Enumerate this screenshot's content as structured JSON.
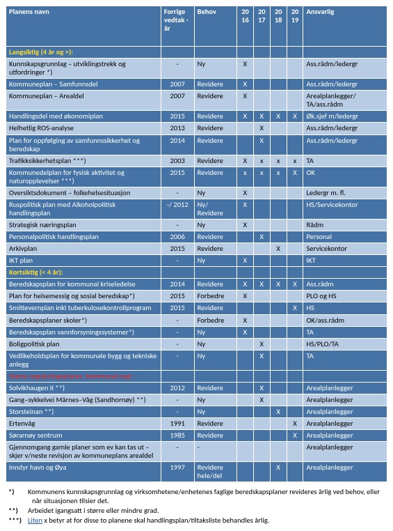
{
  "headers": {
    "name": "Planens navn",
    "prev": "Forrige vedtak - år",
    "need": "Behov",
    "y16": "20 16",
    "y17": "20 17",
    "y18": "20 18",
    "y19": "20 19",
    "resp": "Ansvarlig"
  },
  "sections": {
    "long": "Langsiktig  (4 år og >):",
    "short": "Kortsiktig (< 4 år):",
    "reg": "Større reguleringsplaner, kommunal regi :"
  },
  "rows": [
    {
      "cls": "row-light",
      "name": "Kunnskapsgrunnlag – utviklingstrekk og utfordringer *)",
      "prev": "-",
      "need": "Ny",
      "y16": "X",
      "y17": "",
      "y18": "",
      "y19": "",
      "resp": "Ass.rådm/ledergr"
    },
    {
      "cls": "row-dark",
      "name": "Kommuneplan – Samfunnsdel",
      "prev": "2007",
      "need": "Revidere",
      "y16": "X",
      "y17": "",
      "y18": "",
      "y19": "",
      "resp": "Ass.rådm/ledergr"
    },
    {
      "cls": "row-light",
      "name": "Kommuneplan – Arealdel",
      "prev": "2007",
      "need": "Revidere",
      "y16": "X",
      "y17": "",
      "y18": "",
      "y19": "",
      "resp": "Arealplanlegger/ TA/ass.rådm"
    },
    {
      "cls": "row-dark",
      "name": "Handlingsdel med økonomiplan",
      "prev": "2015",
      "need": "Revidere",
      "y16": "X",
      "y17": "X",
      "y18": "X",
      "y19": "X",
      "resp": "Øk.sjef m/ledergr"
    },
    {
      "cls": "row-light",
      "name": "Helhetlig ROS-analyse",
      "prev": "2013",
      "need": "Revidere",
      "y16": "",
      "y17": "X",
      "y18": "",
      "y19": "",
      "resp": "Ass.rådm/ledergr"
    },
    {
      "cls": "row-dark",
      "name": "Plan for oppfølging av samfunnssikkerhet og beredskap",
      "prev": "2014",
      "need": "Revidere",
      "y16": "",
      "y17": "X",
      "y18": "",
      "y19": "",
      "resp": "Ass.rådm/ledergr"
    },
    {
      "cls": "row-light",
      "name": "Trafikksikkerhetsplan ***)",
      "prev": "2003",
      "need": "Revidere",
      "y16": "X",
      "y17": "x",
      "y18": "x",
      "y19": "x",
      "resp": "TA"
    },
    {
      "cls": "row-dark",
      "name": "Kommunedelplan for fysisk aktivitet og naturopplevelser ***)",
      "prev": "2015",
      "need": "Revidere",
      "y16": "x",
      "y17": "x",
      "y18": "x",
      "y19": "X",
      "resp": "OK"
    },
    {
      "cls": "row-light",
      "name": "Oversiktsdokument – folkehelsesituasjon",
      "prev": "-",
      "need": "Ny",
      "y16": "X",
      "y17": "",
      "y18": "",
      "y19": "",
      "resp": "Ledergr m. fl."
    },
    {
      "cls": "row-dark",
      "name": "Ruspolitisk plan med Alkoholpolitisk handlingsplan",
      "prev": "-/ 2012",
      "need": "Ny/ Revidere",
      "y16": "X",
      "y17": "",
      "y18": "",
      "y19": "",
      "resp": "HS/Servicekontor"
    },
    {
      "cls": "row-light",
      "name": "Strategisk næringsplan",
      "prev": "-",
      "need": "Ny",
      "y16": "X",
      "y17": "",
      "y18": "",
      "y19": "",
      "resp": "Rådm"
    },
    {
      "cls": "row-dark",
      "name": "Personalpolitisk handlingsplan",
      "prev": "2006",
      "need": "Revidere",
      "y16": "",
      "y17": "X",
      "y18": "",
      "y19": "",
      "resp": "Personal"
    },
    {
      "cls": "row-light",
      "name": "Arkivplan",
      "prev": "2015",
      "need": "Revidere",
      "y16": "",
      "y17": "",
      "y18": "X",
      "y19": "",
      "resp": "Servicekontor"
    },
    {
      "cls": "row-dark",
      "name": "IKT plan",
      "prev": "-",
      "need": "Ny",
      "y16": "X",
      "y17": "",
      "y18": "",
      "y19": "",
      "resp": "IKT"
    }
  ],
  "rows2": [
    {
      "cls": "row-dark",
      "name": "Beredskapsplan  for kommunal kriseledelse",
      "prev": "2014",
      "need": "Revidere",
      "y16": "X",
      "y17": "X",
      "y18": "X",
      "y19": "X",
      "resp": "Ass.rådm"
    },
    {
      "cls": "row-light",
      "name": "Plan for helsemessig og sosial beredskap*)",
      "prev": "2015",
      "need": "Forbedre",
      "y16": "X",
      "y17": "",
      "y18": "",
      "y19": "",
      "resp": "PLO og HS"
    },
    {
      "cls": "row-dark",
      "name": "Smittevernplan inkl tuberkulosekontrollprogram",
      "prev": "2015",
      "need": "Revidere",
      "y16": "",
      "y17": "",
      "y18": "",
      "y19": "X",
      "resp": "HS"
    },
    {
      "cls": "row-light",
      "name": "Beredskapsplaner skoler*)",
      "prev": "-",
      "need": "Forbedre",
      "y16": "X",
      "y17": "",
      "y18": "",
      "y19": "",
      "resp": "OK/ass.rådm"
    },
    {
      "cls": "row-dark",
      "name": "Beredskapsplan vannforsyningssystemer*)",
      "prev": "-",
      "need": "Ny",
      "y16": "X",
      "y17": "",
      "y18": "",
      "y19": "",
      "resp": "TA"
    },
    {
      "cls": "row-light",
      "name": "Boligpolitisk plan",
      "prev": "-",
      "need": "Ny",
      "y16": "",
      "y17": "X",
      "y18": "",
      "y19": "",
      "resp": "HS/PLO/TA"
    },
    {
      "cls": "row-dark",
      "name": "Vedlikeholdsplan for kommunale bygg og tekniske anlegg",
      "prev": "-",
      "need": "Ny",
      "y16": "",
      "y17": "X",
      "y18": "",
      "y19": "",
      "resp": "TA"
    }
  ],
  "rows3": [
    {
      "cls": "row-dark",
      "name": "Solvikhaugen II **)",
      "prev": "2012",
      "need": "Revidere",
      "y16": "",
      "y17": "X",
      "y18": "",
      "y19": "",
      "resp": "Arealplanlegger"
    },
    {
      "cls": "row-light",
      "name": "Gang–sykkelvei Mårnes–Våg (Sandhornøy) **)",
      "prev": "-",
      "need": "Ny",
      "y16": "",
      "y17": "X",
      "y18": "",
      "y19": "",
      "resp": "Arealplanlegger"
    },
    {
      "cls": "row-dark",
      "name": "Storsteinan **)",
      "prev": "-",
      "need": "Ny",
      "y16": "",
      "y17": "",
      "y18": "X",
      "y19": "",
      "resp": "Arealplanlegger"
    },
    {
      "cls": "row-light",
      "name": "Ertenvåg",
      "prev": "1991",
      "need": "Revidere",
      "y16": "",
      "y17": "",
      "y18": "",
      "y19": "X",
      "resp": "Arealplanlegger"
    },
    {
      "cls": "row-dark",
      "name": "Sørarnøy sentrum",
      "prev": "1985",
      "need": "Revidere",
      "y16": "",
      "y17": "",
      "y18": "",
      "y19": "X",
      "resp": "Arealplanlegger"
    },
    {
      "cls": "row-light",
      "name": "Gjennomgang gamle planer som ev kan tas ut – skjer v/neste revisjon av kommuneplans arealdel",
      "prev": "-",
      "need": "-",
      "y16": "",
      "y17": "",
      "y18": "",
      "y19": "",
      "resp": "Arealplanlegger"
    },
    {
      "cls": "row-dark",
      "name": "Inndyr havn og Øya",
      "prev": "1997",
      "need": "Revidere hele/del",
      "y16": "",
      "y17": "",
      "y18": "X",
      "y19": "",
      "resp": "Arealplanlegger"
    }
  ],
  "notes": {
    "n1": "Kommunens kunnskapsgrunnlag og virksomhetene/enhetenes faglige beredskapsplaner revideres årlig ved behov, eller når situasjonen tilsier det.",
    "n2": "Arbeidet igangsatt i større eller mindre grad.",
    "n3a": "Liten",
    "n3b": " x betyr at for disse to planene skal handlingsplan/tiltaksliste behandles årlig."
  },
  "asters": {
    "a1": "*)",
    "a2": "**)",
    "a3": "***)"
  }
}
